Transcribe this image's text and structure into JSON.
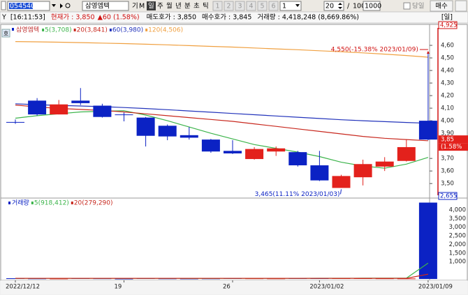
{
  "toolbar": {
    "code": "054540",
    "name": "삼영엠텍",
    "type_buttons": [
      "기",
      "M"
    ],
    "period_buttons": [
      "일",
      "주",
      "월",
      "년",
      "분",
      "초",
      "틱"
    ],
    "number_buttons": [
      "1",
      "2",
      "3",
      "4",
      "5",
      "6"
    ],
    "number_select": "1",
    "period": "20",
    "slash": "/",
    "count": "1000",
    "count_box": "1000",
    "today": "당일",
    "buy": "매수"
  },
  "status_bar": {
    "marker": "Y",
    "time": "[16:11:53]",
    "price": "현재가 : 3,850",
    "change": "▲60 (1.58%)",
    "ask": "매도호가 : 3,850",
    "bid": "매수호가 : 3,845",
    "volume": "거래량 : 4,418,248 (8,669.86%)",
    "period": "[일]"
  },
  "chart_data": [
    {
      "type": "candlestick",
      "legend_title": "삼영엠텍",
      "side_label": "호",
      "open": [
        3990,
        4160,
        4050,
        4160,
        4120,
        4050,
        4025,
        3960,
        3885,
        3850,
        3760,
        3695,
        3755,
        3750,
        3645,
        3465,
        3550,
        3635,
        3680,
        4000
      ],
      "high": [
        4010,
        4180,
        4165,
        4260,
        4135,
        4065,
        4030,
        3970,
        3950,
        3855,
        3845,
        3790,
        3795,
        3760,
        3760,
        3570,
        3690,
        3710,
        3850,
        4550
      ],
      "low": [
        3975,
        4040,
        4050,
        4125,
        4025,
        3995,
        3795,
        3845,
        3850,
        3745,
        3735,
        3690,
        3720,
        3635,
        3520,
        3465,
        3485,
        3600,
        3675,
        3845
      ],
      "close": [
        3985,
        4050,
        4130,
        4140,
        4030,
        4045,
        3880,
        3875,
        3865,
        3755,
        3740,
        3775,
        3780,
        3645,
        3525,
        3560,
        3655,
        3675,
        3790,
        3850
      ],
      "up_color": "#e3211c",
      "down_color": "#0b22c4",
      "series": [
        {
          "name": "5(3,708)",
          "color": "#3cb44b",
          "values": [
            4020,
            4040,
            4055,
            4070,
            4075,
            4080,
            4045,
            4000,
            3950,
            3900,
            3855,
            3810,
            3780,
            3750,
            3715,
            3670,
            3640,
            3622,
            3655,
            3708
          ]
        },
        {
          "name": "20(3,841)",
          "color": "#c8281e",
          "values": [
            4125,
            4110,
            4098,
            4090,
            4082,
            4070,
            4055,
            4040,
            4025,
            4010,
            3995,
            3975,
            3955,
            3935,
            3915,
            3895,
            3875,
            3860,
            3850,
            3841
          ]
        },
        {
          "name": "60(3,980)",
          "color": "#2233bb",
          "values": [
            4135,
            4128,
            4122,
            4117,
            4112,
            4105,
            4097,
            4088,
            4078,
            4068,
            4058,
            4048,
            4038,
            4028,
            4018,
            4008,
            4000,
            3993,
            3986,
            3980
          ]
        },
        {
          "name": "120(4,506)",
          "color": "#f0a040",
          "values": [
            4630,
            4628,
            4625,
            4622,
            4618,
            4614,
            4609,
            4604,
            4598,
            4592,
            4586,
            4579,
            4572,
            4565,
            4557,
            4549,
            4540,
            4530,
            4519,
            4506
          ]
        }
      ],
      "ylim": [
        3390,
        4750
      ],
      "yticks": [
        {
          "value": 4600,
          "label": "4,60"
        },
        {
          "value": 4500,
          "label": "4,50"
        },
        {
          "value": 4400,
          "label": "4,40"
        },
        {
          "value": 4300,
          "label": "4,30"
        },
        {
          "value": 4200,
          "label": "4,20"
        },
        {
          "value": 4100,
          "label": "4,10"
        },
        {
          "value": 4000,
          "label": "4,00"
        },
        {
          "value": 3900,
          "label": "3,90"
        },
        {
          "value": 3700,
          "label": "3,70"
        },
        {
          "value": 3600,
          "label": "3,60"
        },
        {
          "value": 3500,
          "label": "3,50"
        }
      ],
      "max_label": "4,925",
      "min_label": "2,655",
      "current": {
        "value": 3850,
        "label": "3,85"
      },
      "current_change_label": "(1.58%",
      "annotations": [
        {
          "text": "4,550(-15.38% 2023/01/09)"
        },
        {
          "text": "3,465(11.11% 2023/01/03)"
        }
      ]
    },
    {
      "type": "bar",
      "legend_title": "거래량",
      "categories": [
        "2022/12/12",
        null,
        null,
        null,
        null,
        "19",
        null,
        null,
        null,
        null,
        "26",
        null,
        null,
        null,
        "2023/01/02",
        null,
        null,
        null,
        null,
        "2023/01/09"
      ],
      "values": [
        40,
        30,
        25,
        60,
        35,
        20,
        40,
        30,
        25,
        30,
        45,
        35,
        30,
        40,
        55,
        50,
        45,
        35,
        30,
        4418
      ],
      "series": [
        {
          "name": "5(918,412)",
          "color": "#3cb44b",
          "values": [
            38,
            37,
            36,
            38,
            38,
            34,
            36,
            37,
            30,
            29,
            34,
            33,
            33,
            36,
            41,
            42,
            44,
            45,
            43,
            918
          ]
        },
        {
          "name": "20(279,290)",
          "color": "#c8281e",
          "values": [
            38,
            38,
            37,
            37,
            37,
            36,
            36,
            36,
            36,
            36,
            36,
            36,
            36,
            36,
            37,
            37,
            38,
            38,
            38,
            279
          ]
        }
      ],
      "ylim": [
        0,
        4600
      ],
      "yticks": [
        {
          "value": 4000,
          "label": "4,000"
        },
        {
          "value": 3500,
          "label": "3,500"
        },
        {
          "value": 3000,
          "label": "3,000"
        },
        {
          "value": 2500,
          "label": "2,500"
        },
        {
          "value": 2000,
          "label": "2,000"
        },
        {
          "value": 1500,
          "label": "1,500"
        },
        {
          "value": 1000,
          "label": "1,000"
        }
      ]
    }
  ]
}
